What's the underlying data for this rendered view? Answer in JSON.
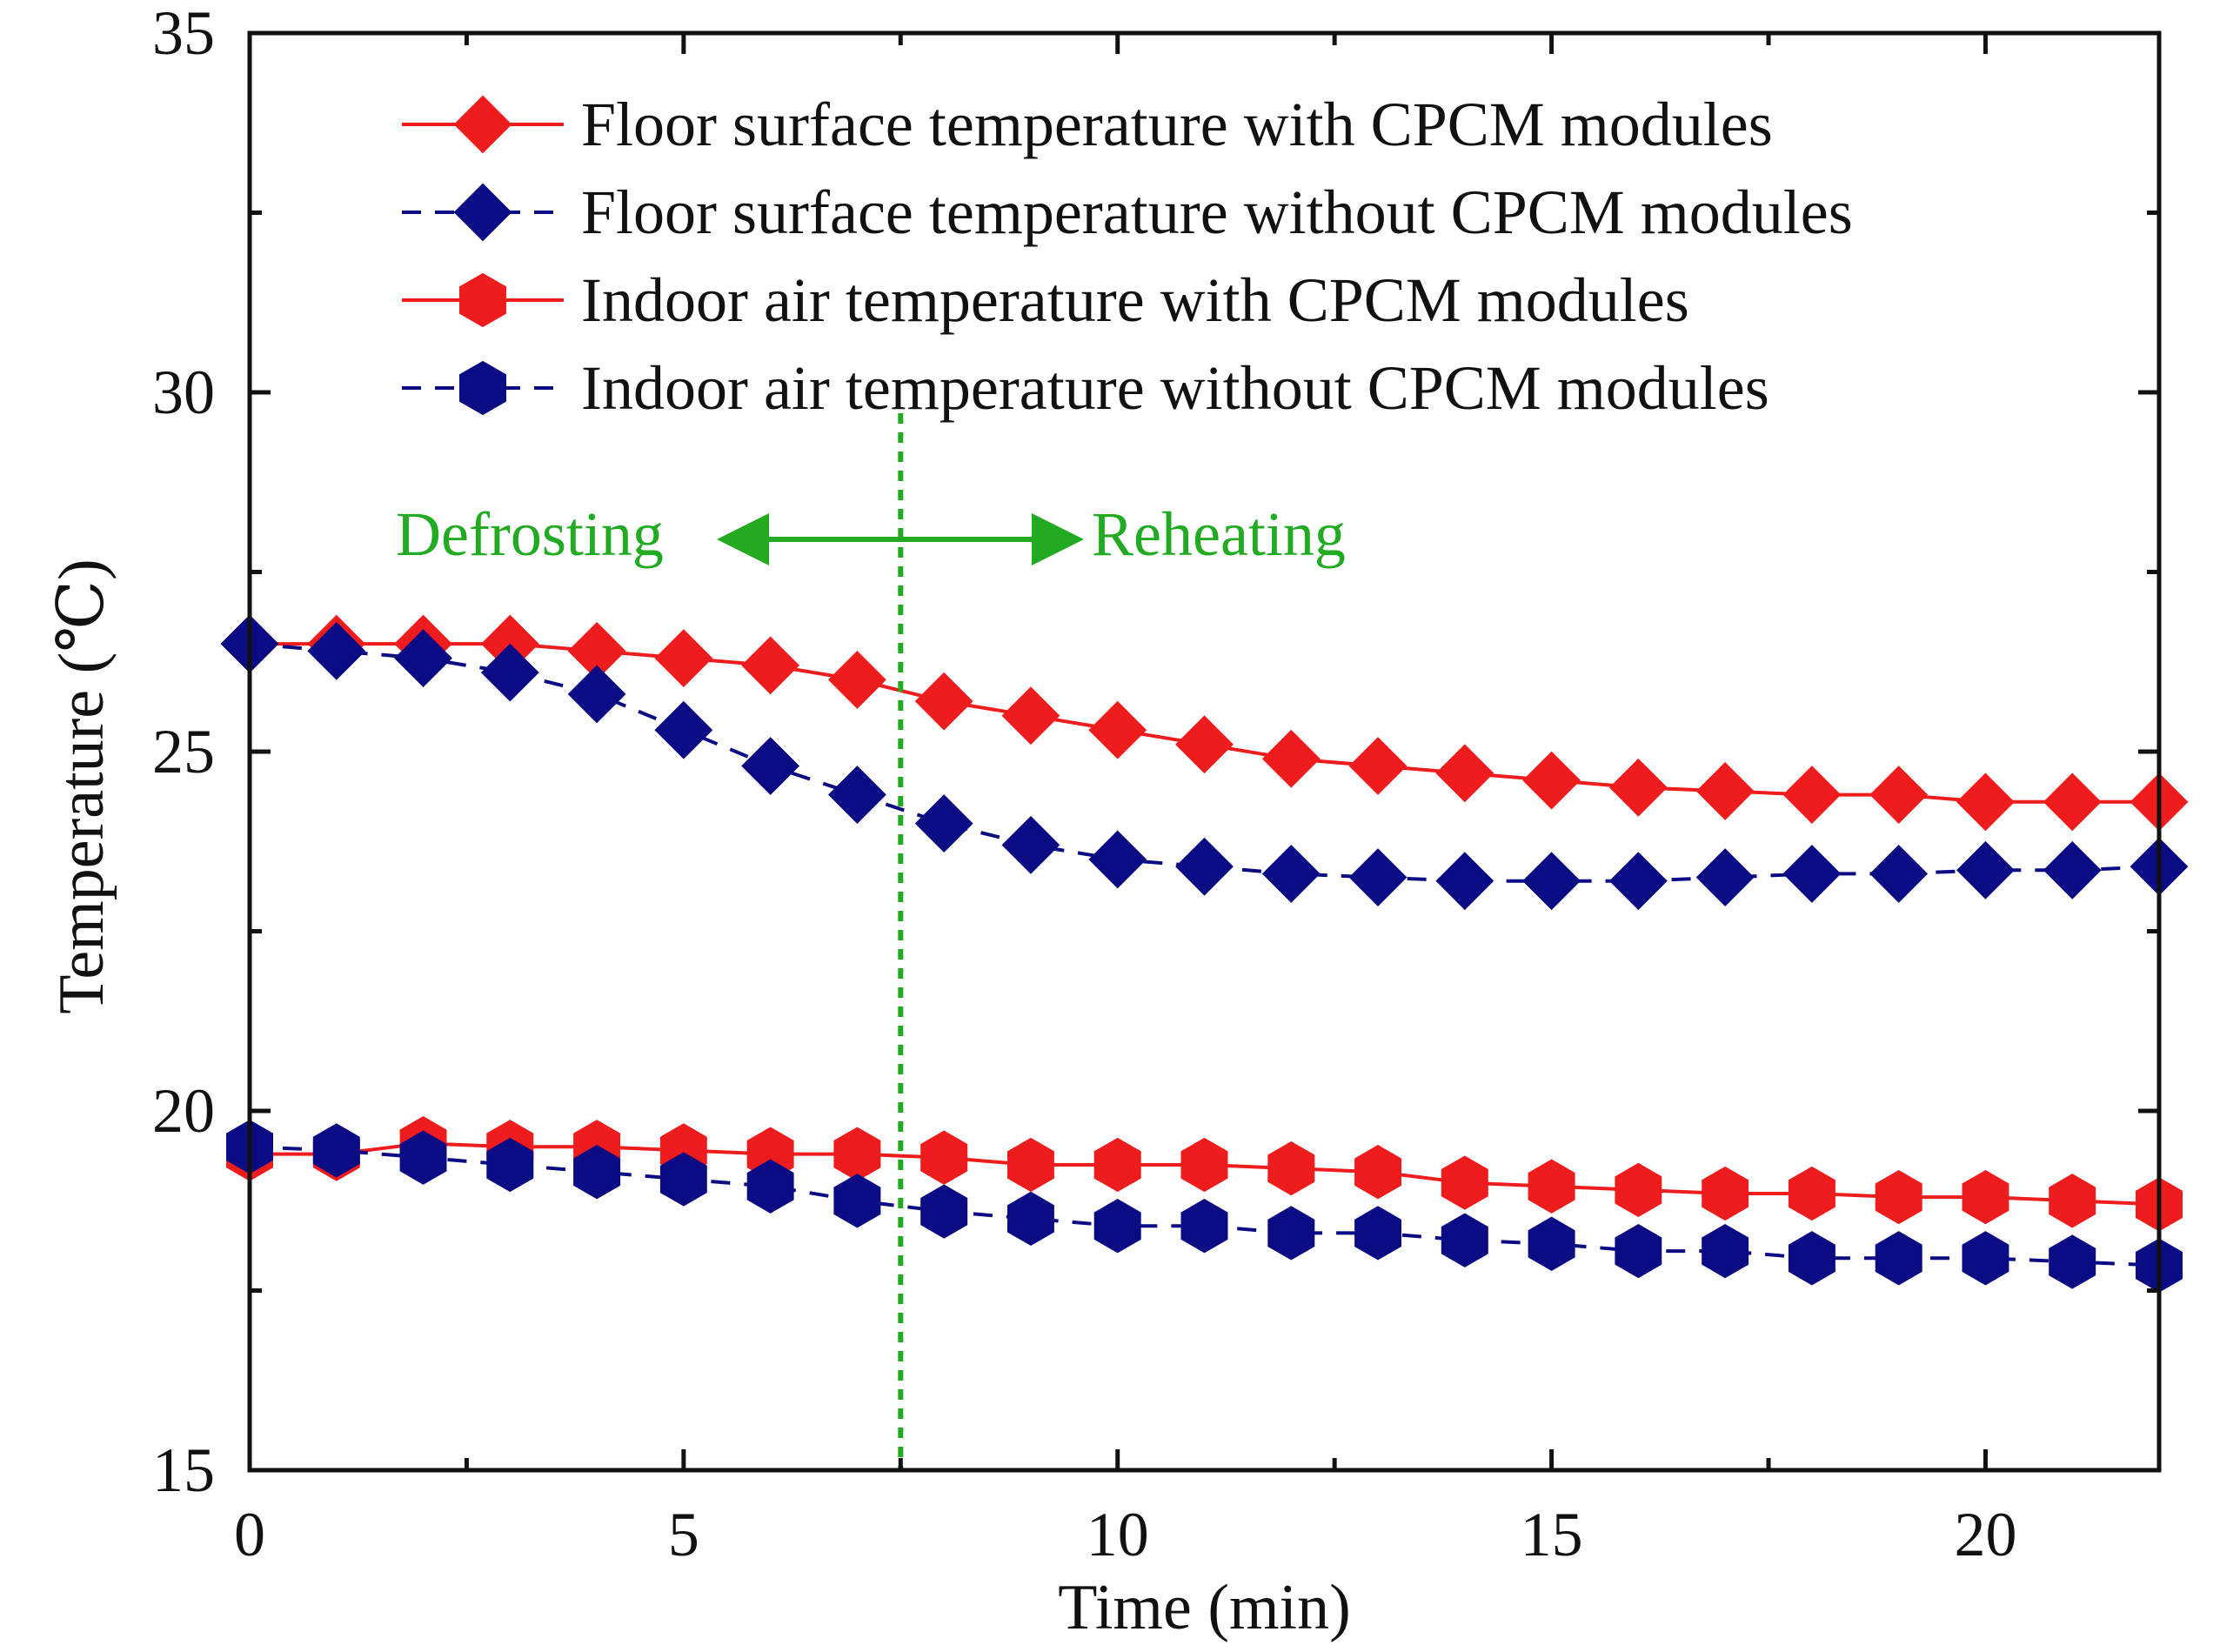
{
  "chart_data": {
    "type": "line",
    "title": "",
    "xlabel": "Time (min)",
    "ylabel": "Temperature (℃)",
    "xlim": [
      0,
      22
    ],
    "ylim": [
      15,
      35
    ],
    "x_major_ticks": [
      0,
      5,
      10,
      15,
      20
    ],
    "x_tick_labels": [
      "0",
      "5",
      "10",
      "15",
      "20"
    ],
    "y_major_ticks": [
      15,
      20,
      25,
      30,
      35
    ],
    "y_tick_labels": [
      "15",
      "20",
      "25",
      "30",
      "35"
    ],
    "legend_position": "top",
    "x": [
      0,
      1,
      2,
      3,
      4,
      5,
      6,
      7,
      8,
      9,
      10,
      11,
      12,
      13,
      14,
      15,
      16,
      17,
      18,
      19,
      20,
      21,
      22
    ],
    "series": [
      {
        "name": "Floor surface temperature with CPCM modules",
        "color": "#ee1c1c",
        "dash": "solid",
        "marker": "diamond",
        "values": [
          26.5,
          26.5,
          26.5,
          26.5,
          26.4,
          26.3,
          26.2,
          26.0,
          25.7,
          25.5,
          25.3,
          25.1,
          24.9,
          24.8,
          24.7,
          24.6,
          24.5,
          24.45,
          24.4,
          24.4,
          24.3,
          24.3,
          24.3
        ]
      },
      {
        "name": "Floor surface temperature without CPCM modules",
        "color": "#0b0b84",
        "dash": "dashed",
        "marker": "diamond",
        "values": [
          26.5,
          26.4,
          26.3,
          26.1,
          25.8,
          25.3,
          24.8,
          24.4,
          24.0,
          23.7,
          23.5,
          23.4,
          23.3,
          23.25,
          23.2,
          23.2,
          23.2,
          23.25,
          23.3,
          23.3,
          23.35,
          23.35,
          23.4
        ]
      },
      {
        "name": "Indoor air temperature with CPCM modules",
        "color": "#ee1c1c",
        "dash": "solid",
        "marker": "hexagon",
        "values": [
          19.4,
          19.4,
          19.55,
          19.5,
          19.5,
          19.45,
          19.4,
          19.4,
          19.35,
          19.25,
          19.25,
          19.25,
          19.2,
          19.15,
          19.0,
          18.95,
          18.9,
          18.85,
          18.85,
          18.8,
          18.8,
          18.75,
          18.7
        ]
      },
      {
        "name": "Indoor air temperature without CPCM modules",
        "color": "#0b0b84",
        "dash": "dashed",
        "marker": "hexagon",
        "values": [
          19.5,
          19.45,
          19.35,
          19.25,
          19.15,
          19.05,
          18.95,
          18.75,
          18.6,
          18.5,
          18.4,
          18.4,
          18.3,
          18.3,
          18.2,
          18.15,
          18.05,
          18.05,
          17.95,
          17.95,
          17.95,
          17.9,
          17.85
        ]
      }
    ],
    "annotations": {
      "divider_x": 7.5,
      "divider_color": "#22aa22",
      "left_label": "Defrosting",
      "right_label": "Reheating"
    }
  }
}
